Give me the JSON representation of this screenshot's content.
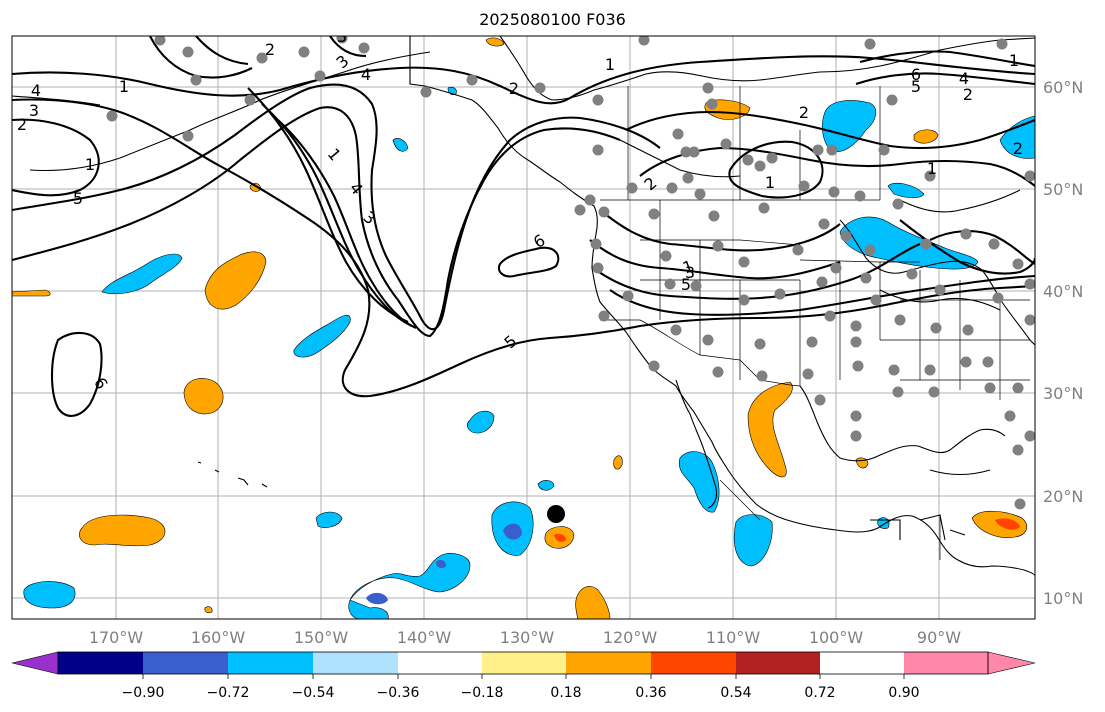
{
  "title": "2025080100 F036",
  "longitude_labels": [
    "170°W",
    "160°W",
    "150°W",
    "140°W",
    "130°W",
    "120°W",
    "110°W",
    "100°W",
    "90°W"
  ],
  "latitude_labels": [
    "60°N",
    "50°N",
    "40°N",
    "30°N",
    "20°N",
    "10°N"
  ],
  "colorbar": {
    "ticks": [
      "−0.90",
      "−0.72",
      "−0.54",
      "−0.36",
      "−0.18",
      "0.18",
      "0.36",
      "0.54",
      "0.72",
      "0.90"
    ],
    "colors": [
      "#9932cc",
      "#00008b",
      "#3a5fcd",
      "#00bfff",
      "#b0e2ff",
      "#ffffff",
      "#fff08c",
      "#ffa500",
      "#ff4500",
      "#b22222",
      "#ff88aa"
    ]
  },
  "contour_labels": [
    "1",
    "1",
    "2",
    "3",
    "4",
    "5",
    "6",
    "6",
    "5",
    "4",
    "3",
    "2",
    "1",
    "2",
    "1",
    "2",
    "1",
    "3",
    "5",
    "4",
    "2",
    "1",
    "2",
    "1",
    "3",
    "4",
    "1",
    "6",
    "5",
    "3",
    "2"
  ],
  "colors": {
    "positive_fill": "#ffa500",
    "strong_positive_fill": "#ff4500",
    "negative_fill": "#00bfff",
    "strong_negative_fill": "#3a5fcd",
    "station_dot": "#808080",
    "marker": "#000000",
    "grid": "#b0b0b0"
  }
}
